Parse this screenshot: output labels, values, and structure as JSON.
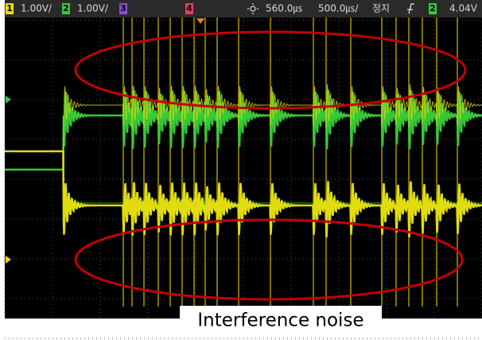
{
  "header": {
    "ch1_label": "1",
    "ch1_scale": "1.00V/",
    "ch2_label": "2",
    "ch2_scale": "1.00V/",
    "ch3_label": "3",
    "ch4_label": "4",
    "delay": "560.0㎲",
    "timebase": "500.0㎲/",
    "status": "정지",
    "trigger_source": "2",
    "trigger_level": "4.04V"
  },
  "annotation": "Interference noise"
}
